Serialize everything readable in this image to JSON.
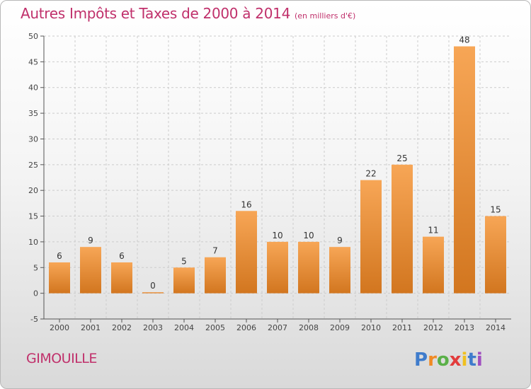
{
  "title": "Autres Impôts et Taxes de 2000 à 2014",
  "subtitle": "(en milliers d'€)",
  "commune": "GIMOUILLE",
  "logo_text": "Proxiti",
  "colors": {
    "title": "#c0306b",
    "bar_light": "#f7a656",
    "bar_dark": "#d2761f",
    "axis": "#555555",
    "grid": "#cccccc"
  },
  "chart_data": {
    "type": "bar",
    "title": "Autres Impôts et Taxes de 2000 à 2014",
    "subtitle": "(en milliers d'€)",
    "xlabel": "",
    "ylabel": "",
    "categories": [
      "2000",
      "2001",
      "2002",
      "2003",
      "2004",
      "2005",
      "2006",
      "2007",
      "2008",
      "2009",
      "2010",
      "2011",
      "2012",
      "2013",
      "2014"
    ],
    "values": [
      6,
      9,
      6,
      0,
      5,
      7,
      16,
      10,
      10,
      9,
      22,
      25,
      11,
      48,
      15
    ],
    "ylim": [
      -5,
      50
    ],
    "yticks": [
      -5,
      0,
      5,
      10,
      15,
      20,
      25,
      30,
      35,
      40,
      45,
      50
    ],
    "grid": "horizontal dashed",
    "legend": "none"
  }
}
